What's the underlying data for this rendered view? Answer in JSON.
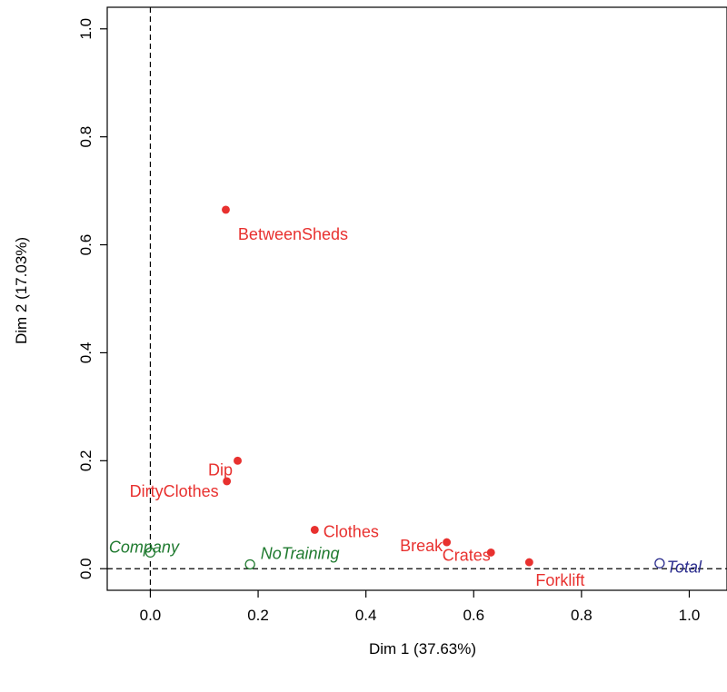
{
  "chart_data": {
    "type": "scatter",
    "title": "",
    "xlabel": "Dim 1 (37.63%)",
    "ylabel": "Dim 2 (17.03%)",
    "xlim": [
      -0.08,
      1.07
    ],
    "ylim": [
      -0.04,
      1.04
    ],
    "x_ticks": [
      0.0,
      0.2,
      0.4,
      0.6,
      0.8,
      1.0
    ],
    "y_ticks": [
      0.0,
      0.2,
      0.4,
      0.6,
      0.8,
      1.0
    ],
    "x_tick_labels": [
      "0.0",
      "0.2",
      "0.4",
      "0.6",
      "0.8",
      "1.0"
    ],
    "y_tick_labels": [
      "0.0",
      "0.2",
      "0.4",
      "0.6",
      "0.8",
      "1.0"
    ],
    "reference_lines": {
      "x": 0,
      "y": 0,
      "style": "dashed"
    },
    "grid": false,
    "groups": [
      {
        "color": "#e8312f",
        "marker": "filled-circle",
        "italic": false,
        "points": [
          {
            "label": "BetweenSheds",
            "x": 0.14,
            "y": 0.665
          },
          {
            "label": "Dip",
            "x": 0.162,
            "y": 0.2
          },
          {
            "label": "DirtyClothes",
            "x": 0.142,
            "y": 0.162
          },
          {
            "label": "Clothes",
            "x": 0.305,
            "y": 0.072
          },
          {
            "label": "Break",
            "x": 0.55,
            "y": 0.049
          },
          {
            "label": "Crates",
            "x": 0.632,
            "y": 0.03
          },
          {
            "label": "Forklift",
            "x": 0.703,
            "y": 0.012
          }
        ]
      },
      {
        "color": "#1f7a2f",
        "marker": "open-circle",
        "italic": true,
        "points": [
          {
            "label": "Company",
            "x": 0.0,
            "y": 0.03
          },
          {
            "label": "NoTraining",
            "x": 0.185,
            "y": 0.008
          }
        ]
      },
      {
        "color": "#2d2f8f",
        "marker": "open-circle",
        "italic": true,
        "points": [
          {
            "label": "Total",
            "x": 0.945,
            "y": 0.01
          }
        ]
      }
    ]
  }
}
